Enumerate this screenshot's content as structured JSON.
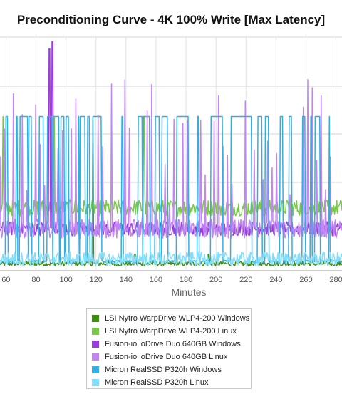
{
  "chart_data": {
    "type": "line",
    "title": "Preconditioning Curve - 4K 100% Write [Max Latency]",
    "xlabel": "Minutes",
    "ylabel": "",
    "x_visible_range": [
      56,
      284
    ],
    "x_ticks": [
      60,
      80,
      100,
      120,
      140,
      160,
      180,
      200,
      220,
      240,
      260,
      280
    ],
    "y_tick_labels": [],
    "grid": true,
    "legend_position": "bottom",
    "series": [
      {
        "name": "LSI Nytro WarpDrive WLP4-200 Windows",
        "color": "#3f8f0e",
        "baseline": 0.03,
        "noise": 0.01,
        "spikes": [
          [
            118,
            0.65
          ],
          [
            146,
            0.07
          ],
          [
            195,
            0.07
          ]
        ]
      },
      {
        "name": "LSI Nytro WarpDrive WLP4-200 Linux",
        "color": "#79c948",
        "baseline": 0.27,
        "noise": 0.035,
        "spikes": [
          [
            58,
            0.66
          ],
          [
            92,
            0.66
          ],
          [
            152,
            0.66
          ]
        ]
      },
      {
        "name": "Fusion-io ioDrive Duo 640GB Windows",
        "color": "#9a3ee0",
        "baseline": 0.18,
        "noise": 0.03,
        "spikes": [
          [
            89,
            0.95
          ],
          [
            91,
            0.98
          ]
        ]
      },
      {
        "name": "Fusion-io ioDrive Duo 640GB Linux",
        "color": "#c285f2",
        "baseline": 0.18,
        "noise": 0.04,
        "spikes_every": 6,
        "spike_top": 0.82
      },
      {
        "name": "Micron RealSSD P320h Windows",
        "color": "#33aee2",
        "baseline": 0.04,
        "noise": 0.01,
        "square_wave": true,
        "high": 0.66
      },
      {
        "name": "Micron RealSSD P320h Linux",
        "color": "#82defa",
        "baseline": 0.05,
        "noise": 0.03
      }
    ]
  }
}
